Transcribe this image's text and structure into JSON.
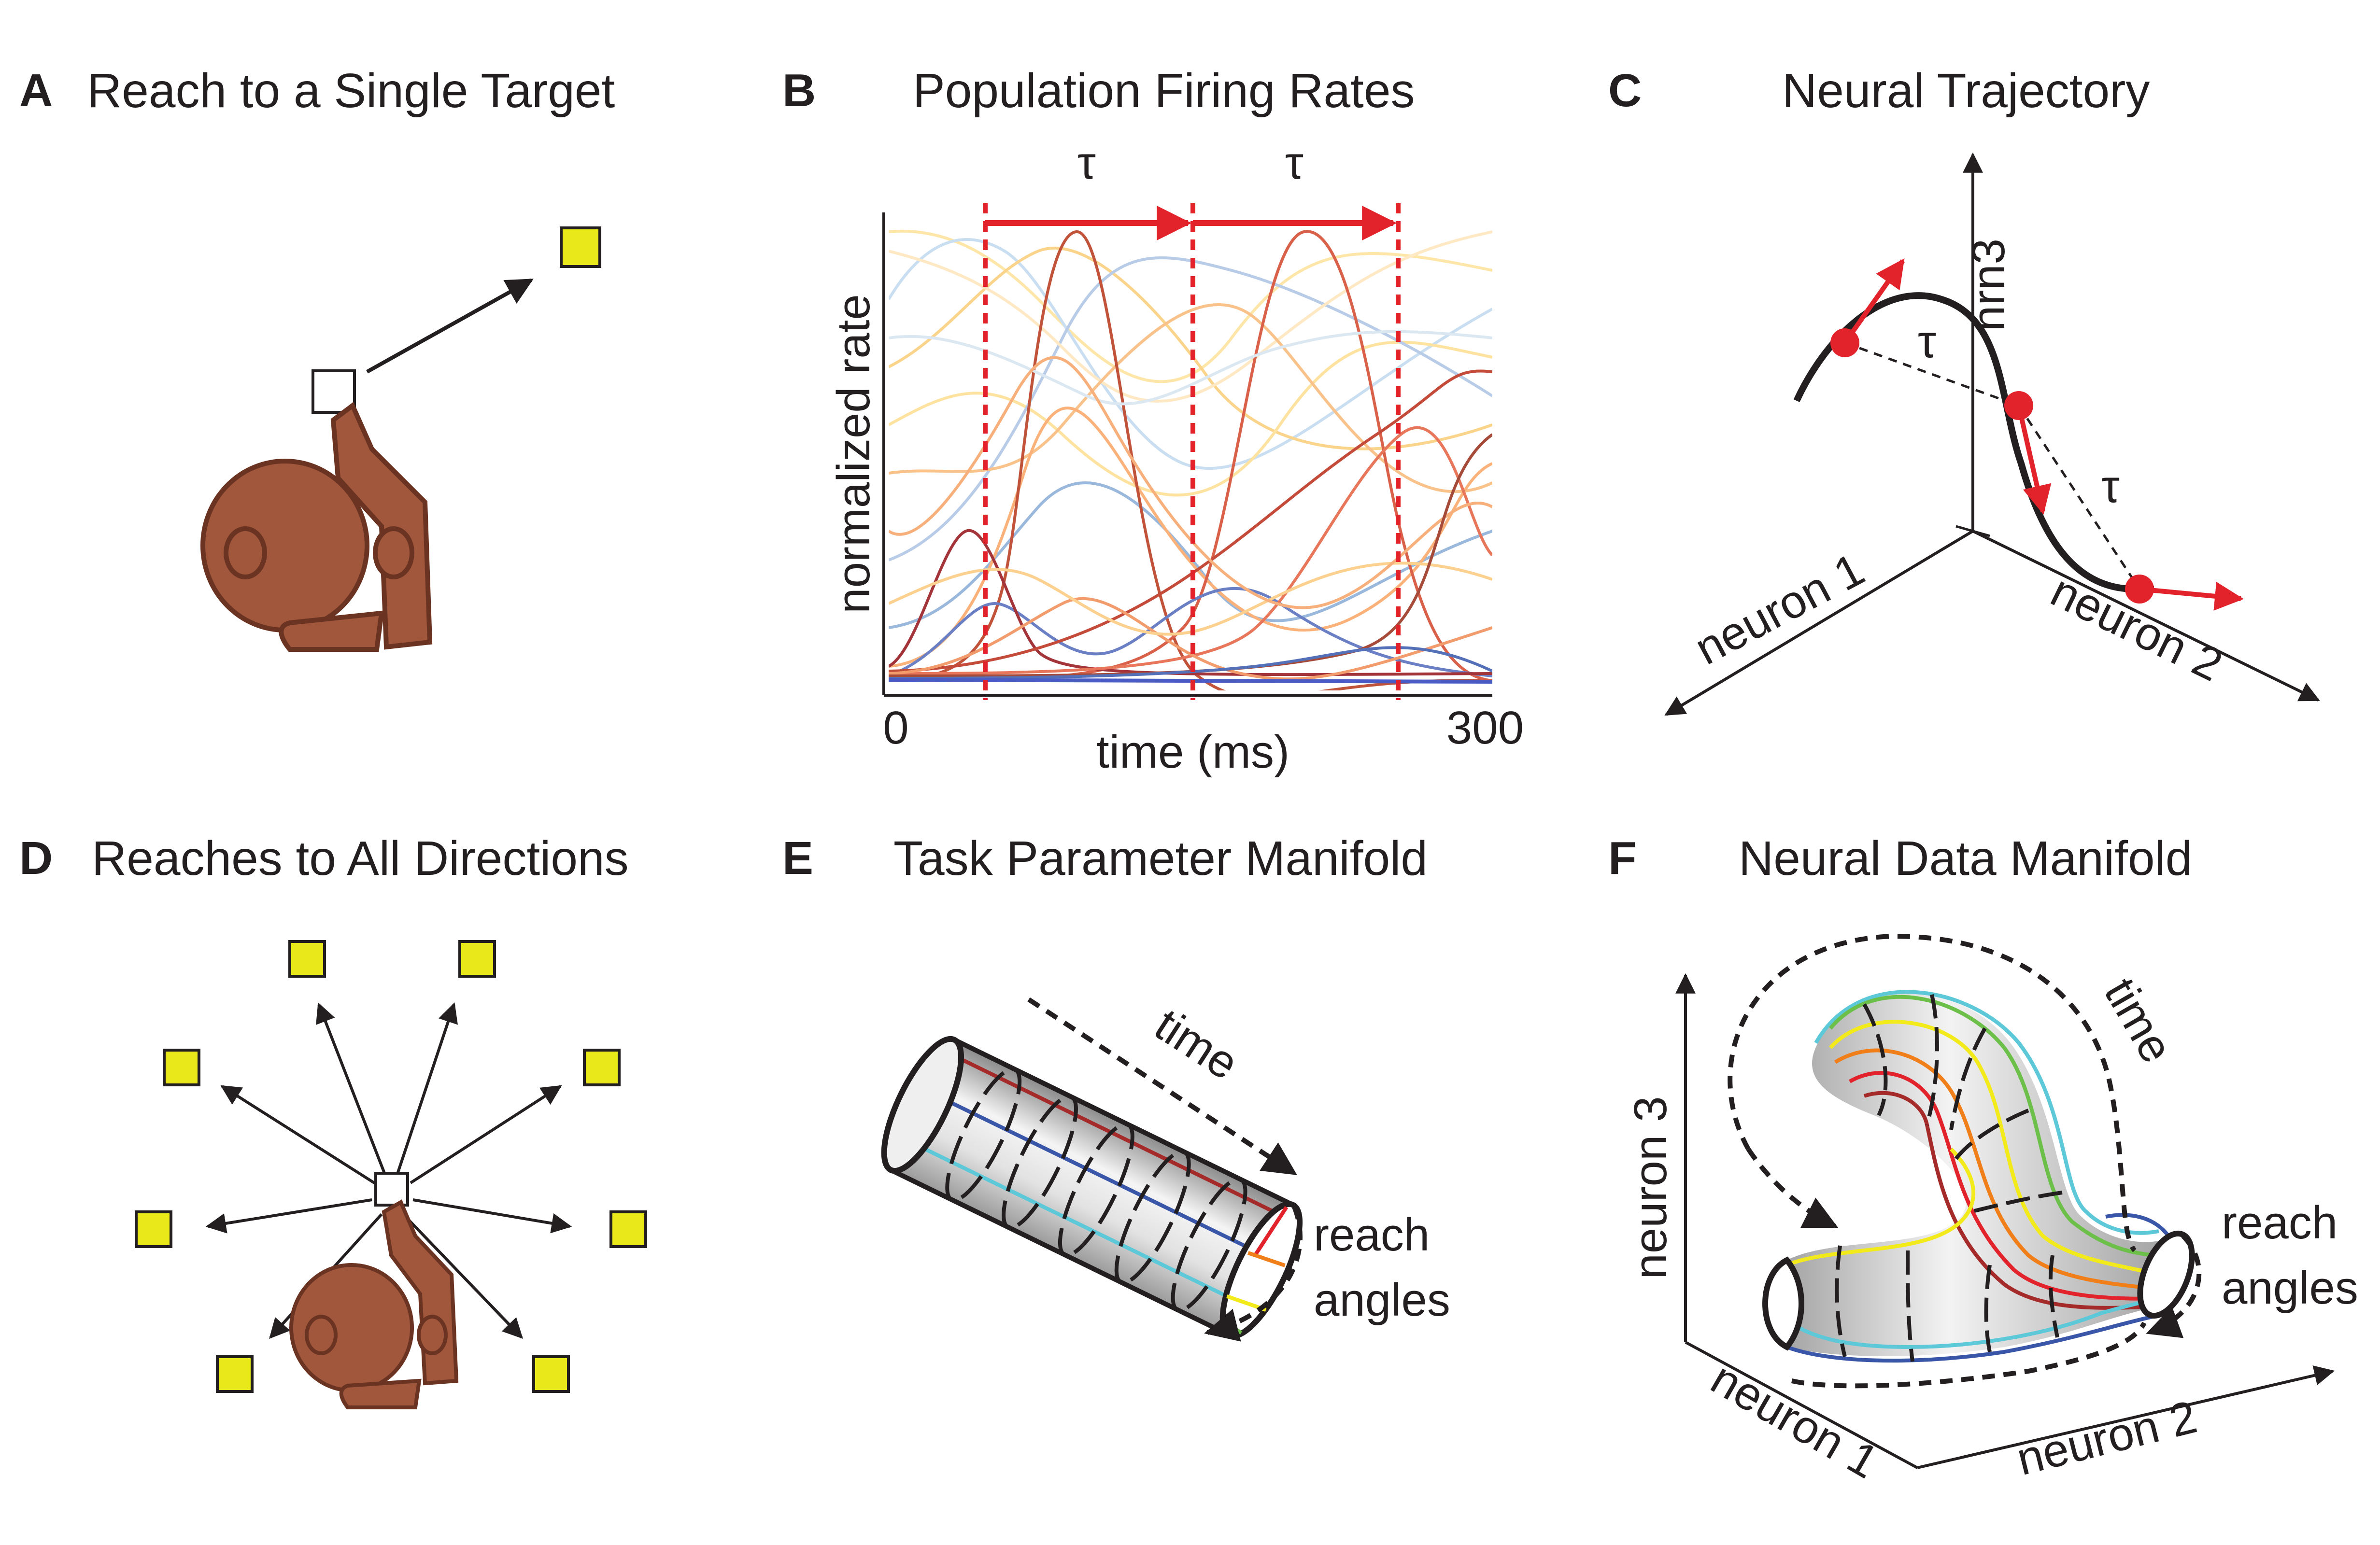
{
  "panels": {
    "A": {
      "letter": "A",
      "title": "Reach to a Single Target"
    },
    "B": {
      "letter": "B",
      "title": "Population Firing Rates",
      "ylabel": "normalized rate",
      "xlabel": "time (ms)",
      "x_tick_start": "0",
      "x_tick_end": "300",
      "tau1": "τ",
      "tau2": "τ"
    },
    "C": {
      "letter": "C",
      "title": "Neural Trajectory",
      "axis_z": "nrn3",
      "axis_x": "neuron 1",
      "axis_y": "neuron 2",
      "tau1": "τ",
      "tau2": "τ"
    },
    "D": {
      "letter": "D",
      "title": "Reaches to All Directions"
    },
    "E": {
      "letter": "E",
      "title": "Task Parameter Manifold",
      "time_label": "time",
      "reach_label_1": "reach",
      "reach_label_2": "angles"
    },
    "F": {
      "letter": "F",
      "title": "Neural Data Manifold",
      "axis_z": "neuron 3",
      "axis_x": "neuron 1",
      "axis_y": "neuron 2",
      "time_label": "time",
      "reach_label_1": "reach",
      "reach_label_2": "angles"
    }
  },
  "colors": {
    "text": "#231f20",
    "monkey": "#a0573c",
    "monkey_outline": "#6b3322",
    "target": "#e8e81a",
    "highlight": "#e3232c",
    "manifold_blue": "#3a56a8",
    "manifold_red": "#a52a2a",
    "manifold_orange": "#f07f1a",
    "manifold_yellow": "#f2ea1a",
    "manifold_green": "#6cc04a",
    "manifold_cyan": "#5cc8d8"
  }
}
